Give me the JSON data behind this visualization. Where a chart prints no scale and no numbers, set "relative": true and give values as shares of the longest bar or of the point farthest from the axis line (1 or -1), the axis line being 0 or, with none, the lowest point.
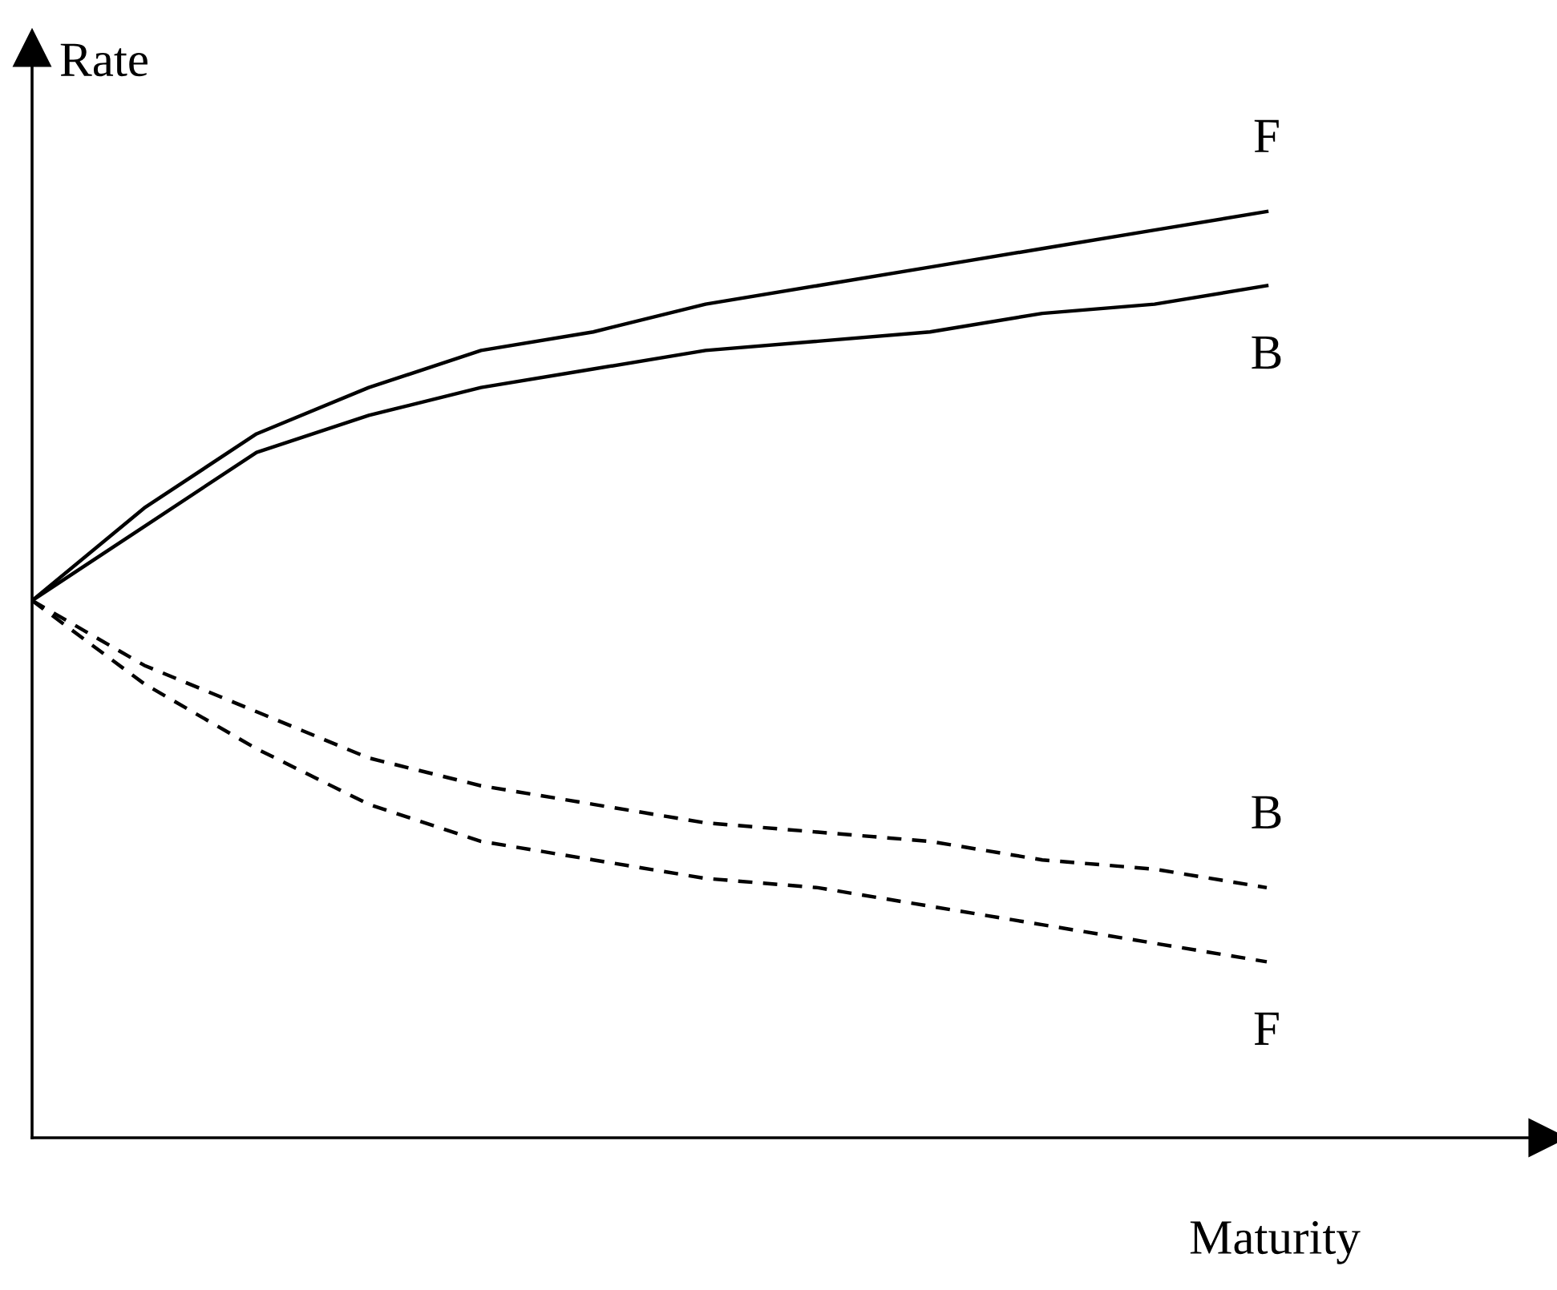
{
  "chart_data": {
    "type": "line",
    "relative": true,
    "xlabel": "Maturity",
    "ylabel": "Rate",
    "legend": false,
    "marker": "none",
    "categories": [
      null,
      null,
      null,
      null,
      null,
      null,
      null,
      null,
      null,
      null,
      null,
      null
    ],
    "series": [
      {
        "name": "F",
        "color": "#000000",
        "line_style": "solid",
        "values": [
          0.58,
          0.68,
          0.76,
          0.81,
          0.85,
          0.87,
          0.9,
          0.92,
          0.94,
          0.96,
          0.98,
          1.0
        ]
      },
      {
        "name": "B",
        "color": "#000000",
        "line_style": "solid",
        "values": [
          0.58,
          0.66,
          0.74,
          0.78,
          0.81,
          0.83,
          0.85,
          0.86,
          0.87,
          0.89,
          0.9,
          0.92
        ]
      },
      {
        "name": "B",
        "color": "#000000",
        "line_style": "dashed",
        "values": [
          0.58,
          0.51,
          0.46,
          0.41,
          0.38,
          0.36,
          0.34,
          0.33,
          0.32,
          0.3,
          0.29,
          0.27
        ]
      },
      {
        "name": "F",
        "color": "#000000",
        "line_style": "dashed",
        "values": [
          0.58,
          0.49,
          0.42,
          0.36,
          0.32,
          0.3,
          0.28,
          0.27,
          0.25,
          0.23,
          0.21,
          0.19
        ]
      }
    ]
  }
}
